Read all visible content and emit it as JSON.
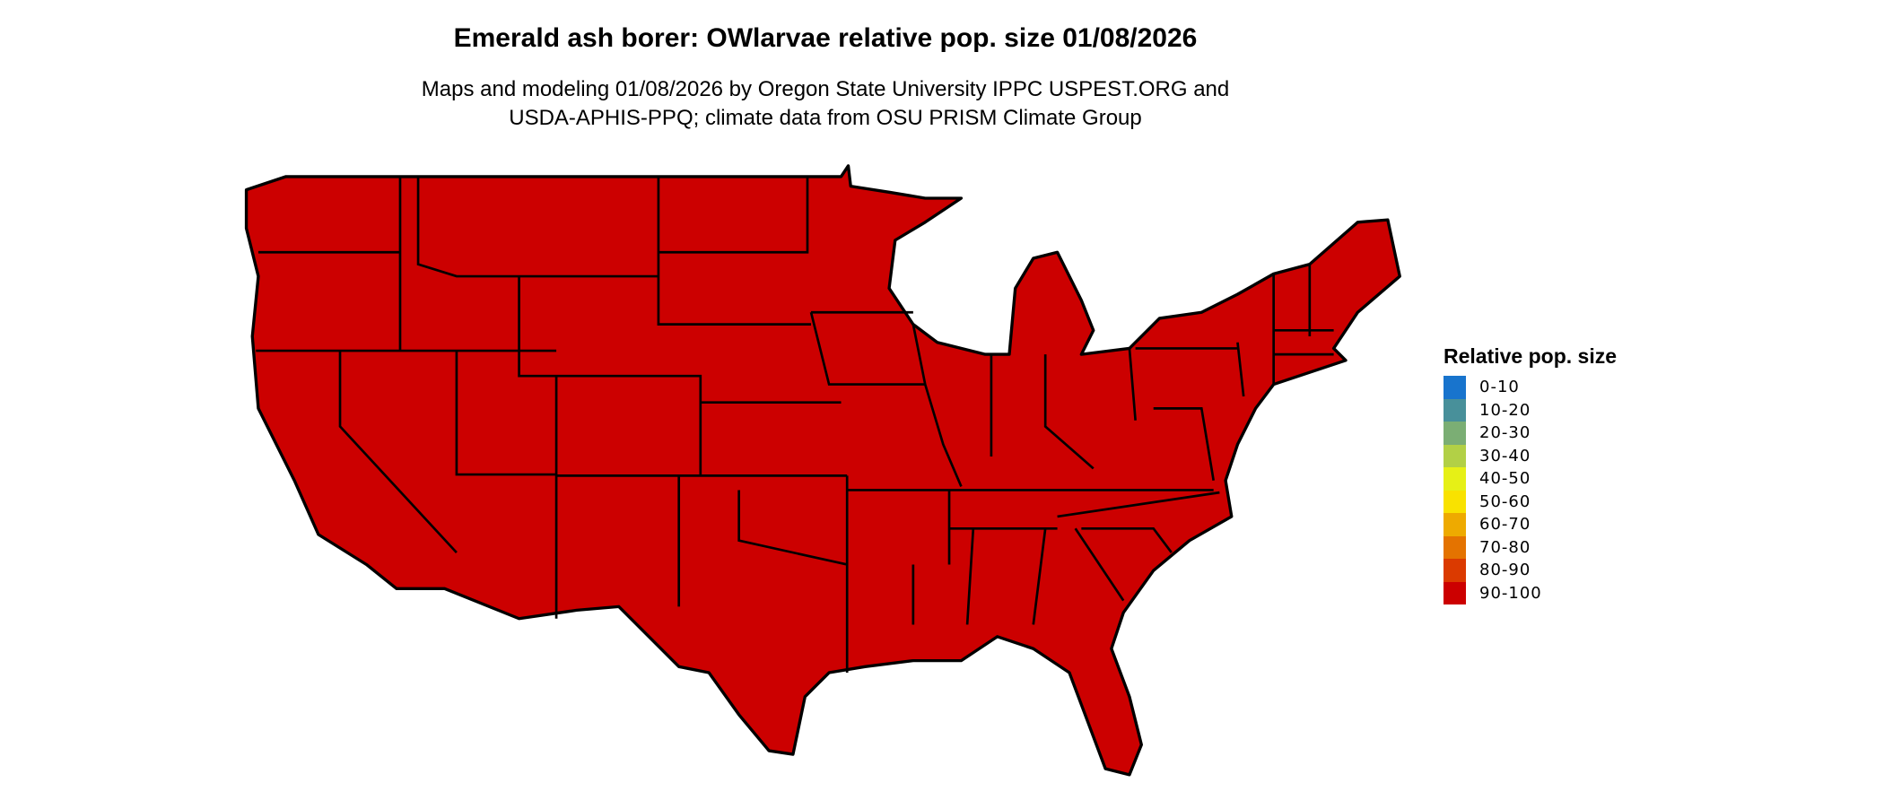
{
  "title": "Emerald ash borer: OWlarvae relative pop. size 01/08/2026",
  "subtitle_line1": "Maps and modeling 01/08/2026 by Oregon State University IPPC USPEST.ORG and",
  "subtitle_line2": "USDA-APHIS-PPQ; climate data from OSU PRISM Climate Group",
  "map": {
    "region": "Conterminous United States",
    "fill_class": "90-100",
    "fill_color": "#CC0000",
    "border_color": "#000000"
  },
  "legend": {
    "title": "Relative pop. size",
    "items": [
      {
        "label": "0-10",
        "color": "#1874CD"
      },
      {
        "label": "10-20",
        "color": "#48909A"
      },
      {
        "label": "20-30",
        "color": "#7BAE74"
      },
      {
        "label": "30-40",
        "color": "#B2D046"
      },
      {
        "label": "40-50",
        "color": "#E6F016"
      },
      {
        "label": "50-60",
        "color": "#F9E200"
      },
      {
        "label": "60-70",
        "color": "#EEAA00"
      },
      {
        "label": "70-80",
        "color": "#E47300"
      },
      {
        "label": "80-90",
        "color": "#DB3A00"
      },
      {
        "label": "90-100",
        "color": "#CC0000"
      }
    ]
  }
}
